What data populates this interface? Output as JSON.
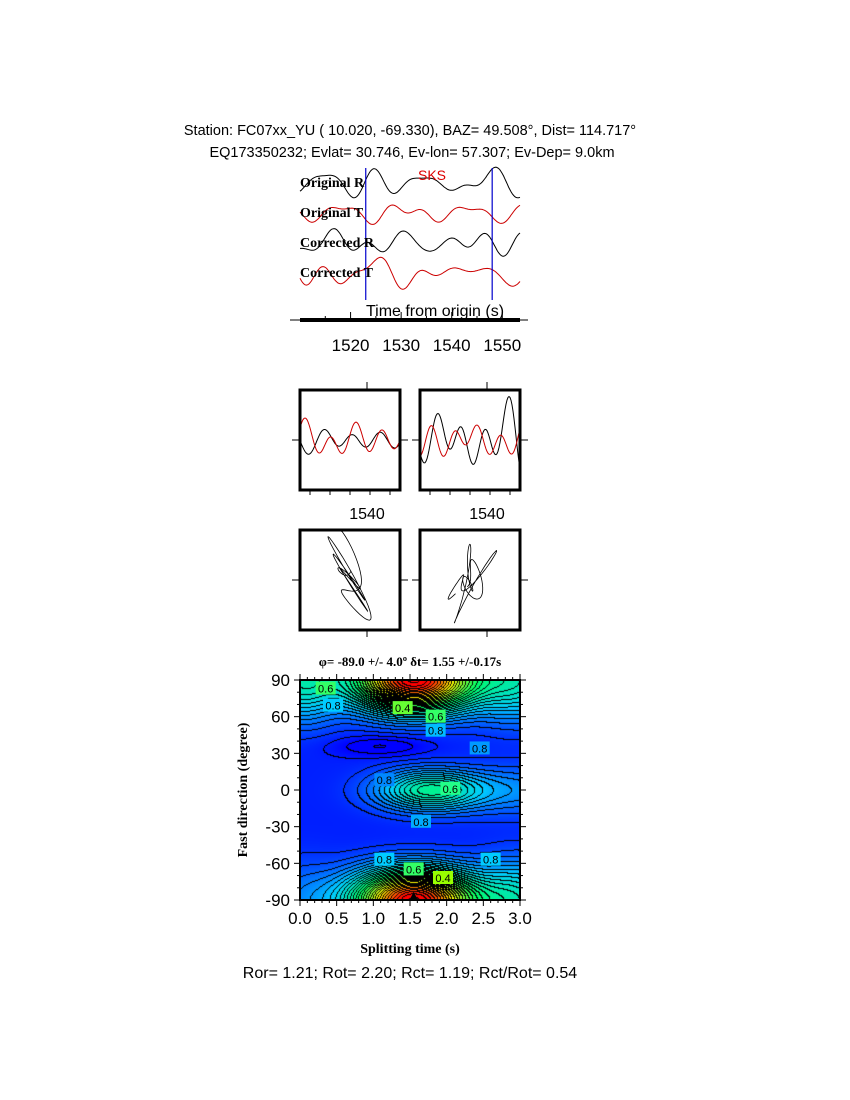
{
  "header": {
    "line1": "Station: FC07xx_YU (  10.020,  -69.330), BAZ=   49.508°, Dist=  114.717°",
    "line2": "EQ173350232; Evlat=  30.746, Ev-lon=  57.307; Ev-Dep=  9.0km"
  },
  "chart_data": [
    {
      "type": "line",
      "name": "waveforms",
      "phase_label": "SKS",
      "traces": [
        "Original R",
        "Original T",
        "Corrected R",
        "Corrected T"
      ],
      "trace_colors": [
        "#000000",
        "#cc0000",
        "#000000",
        "#cc0000"
      ],
      "window_markers_s": [
        1523,
        1548
      ],
      "marker_color": "#0000cc",
      "xlabel": "Time from origin (s)",
      "xticks": [
        "1520",
        "1530",
        "1540",
        "1550"
      ],
      "xlim": [
        1510,
        1553.5
      ]
    },
    {
      "type": "line",
      "name": "fast-slow-overlay",
      "panels": [
        "original",
        "corrected"
      ],
      "xticks": [
        "1540",
        "1540"
      ]
    },
    {
      "type": "scatter",
      "name": "particle-motion",
      "panels": [
        "original",
        "corrected"
      ]
    },
    {
      "type": "heatmap",
      "title": "φ= -89.0 +/- 4.0º δt= 1.55 +/-0.17s",
      "xlabel": "Splitting time (s)",
      "ylabel": "Fast direction (degree)",
      "xlim": [
        0,
        3
      ],
      "ylim": [
        -90,
        90
      ],
      "xticks": [
        "0.0",
        "0.5",
        "1.0",
        "1.5",
        "2.0",
        "2.5",
        "3.0"
      ],
      "yticks": [
        "90",
        "60",
        "30",
        "0",
        "-30",
        "-60",
        "-90"
      ],
      "best_fit": {
        "dt": 1.55,
        "phi": -89.0
      },
      "colormap": [
        "#ff0000",
        "#ffff00",
        "#00ff66",
        "#00ccff",
        "#0000ff"
      ],
      "contour_labels": [
        {
          "t": 1.4,
          "phi": 67,
          "text": "0.4",
          "color": "#66ff33"
        },
        {
          "t": 1.85,
          "phi": 60,
          "text": "0.6",
          "color": "#33ff66"
        },
        {
          "t": 1.85,
          "phi": 54,
          "text": "0.8",
          "color": "#00bbff"
        },
        {
          "t": 2.45,
          "phi": 34,
          "text": "0.8",
          "color": "#0099ff"
        },
        {
          "t": 1.15,
          "phi": 8,
          "text": "0.8",
          "color": "#0088ff"
        },
        {
          "t": 2.05,
          "phi": 1,
          "text": "0.6",
          "color": "#22ff88"
        },
        {
          "t": 1.65,
          "phi": -26,
          "text": "0.8",
          "color": "#00aaff"
        },
        {
          "t": 1.15,
          "phi": -57,
          "text": "0.8",
          "color": "#00ccff"
        },
        {
          "t": 2.6,
          "phi": -57,
          "text": "0.8",
          "color": "#00ccff"
        },
        {
          "t": 1.55,
          "phi": -65,
          "text": "0.6",
          "color": "#33ff66"
        },
        {
          "t": 1.95,
          "phi": -72,
          "text": "0.4",
          "color": "#99ff00"
        },
        {
          "t": 0.35,
          "phi": 83,
          "text": "0.6",
          "color": "#33ff66"
        },
        {
          "t": 0.45,
          "phi": 69,
          "text": "0.8",
          "color": "#00ccff"
        }
      ]
    }
  ],
  "footer": {
    "ratios": "Ror= 1.21; Rot= 2.20; Rct= 1.19; Rct/Rot= 0.54"
  }
}
